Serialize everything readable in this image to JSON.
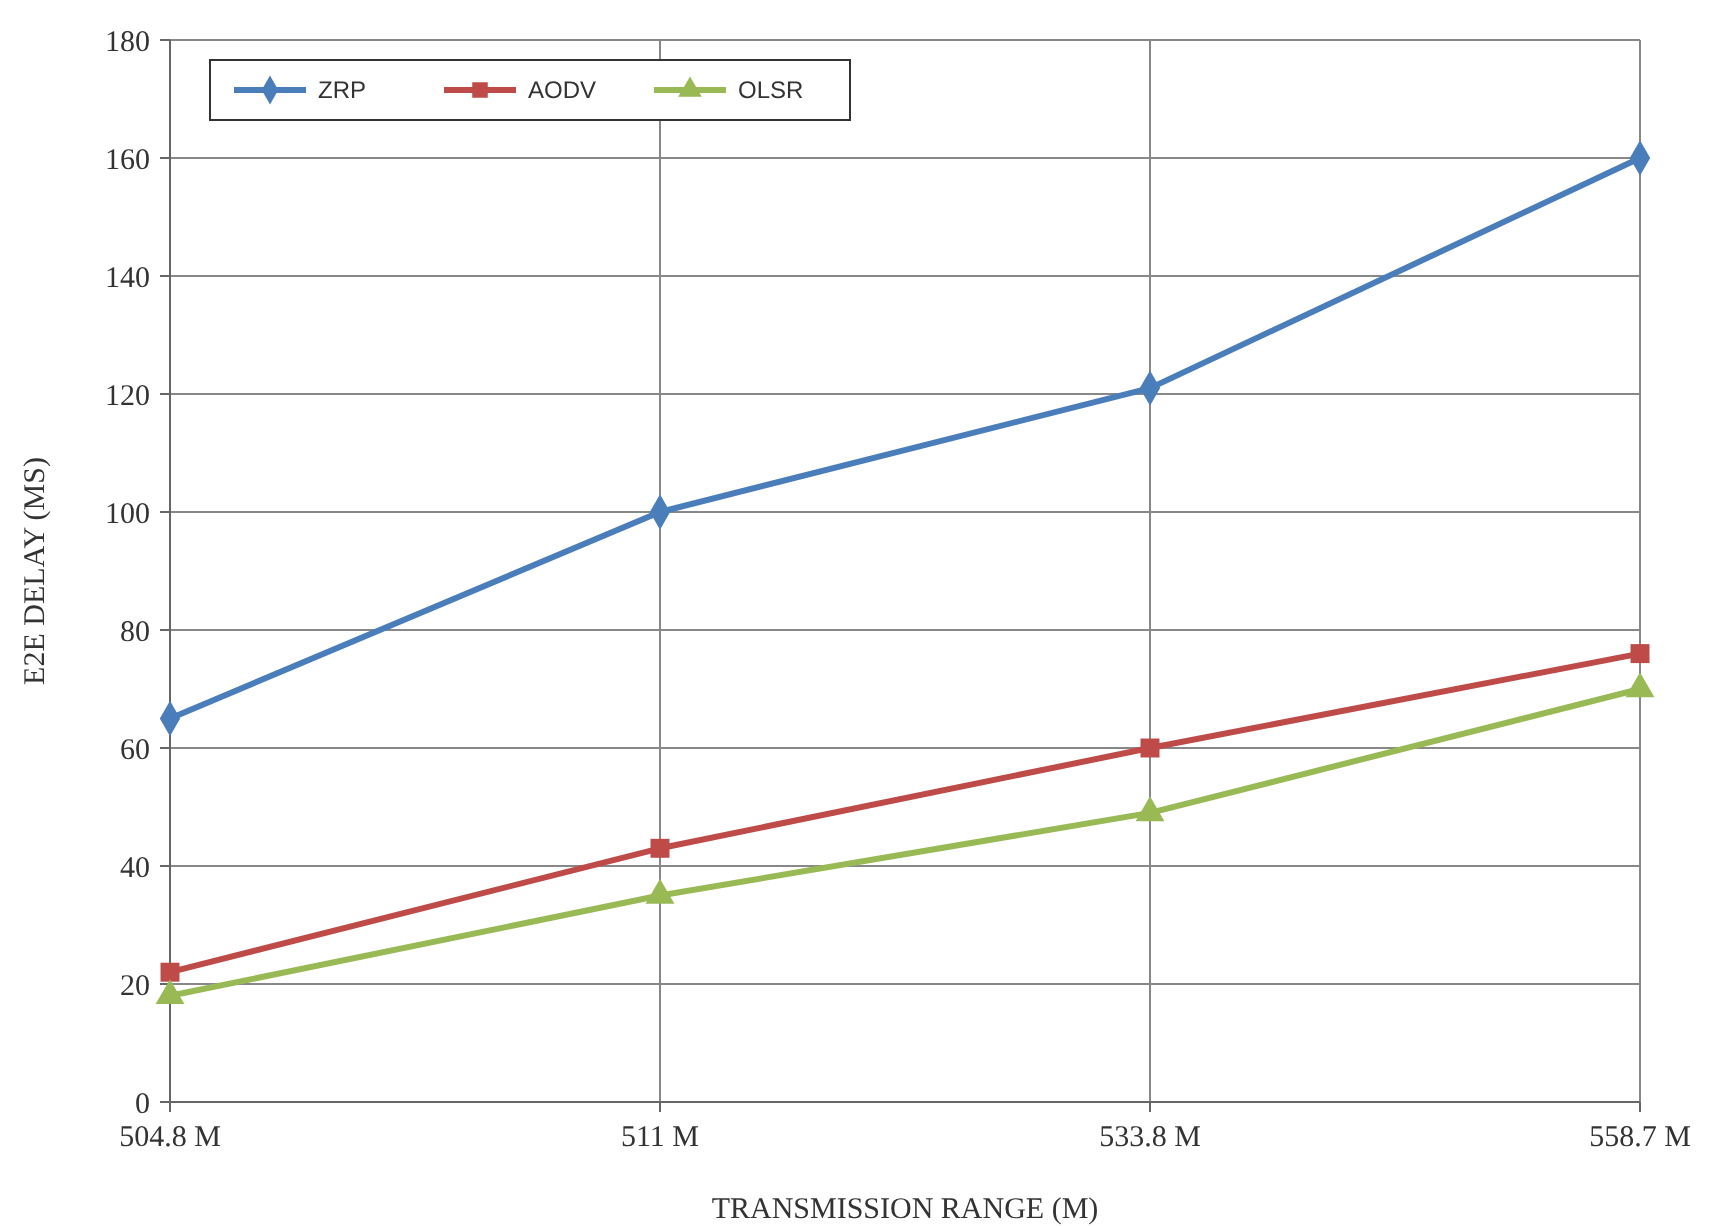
{
  "chart_data": {
    "type": "line",
    "xlabel": "TRANSMISSION RANGE (M)",
    "ylabel": "E2E DELAY (MS)",
    "categories": [
      "504.8 M",
      "511 M",
      "533.8 M",
      "558.7 M"
    ],
    "series": [
      {
        "name": "ZRP",
        "color": "#4a7ebb",
        "marker": "diamond",
        "values": [
          65,
          100,
          121,
          160
        ]
      },
      {
        "name": "AODV",
        "color": "#be4b48",
        "marker": "square",
        "values": [
          22,
          43,
          60,
          76
        ]
      },
      {
        "name": "OLSR",
        "color": "#98b954",
        "marker": "triangle",
        "values": [
          18,
          35,
          49,
          70
        ]
      }
    ],
    "ylim": [
      0,
      180
    ],
    "yticks": [
      0,
      20,
      40,
      60,
      80,
      100,
      120,
      140,
      160,
      180
    ],
    "grid": true,
    "legend": "top left",
    "line_style": "solid"
  }
}
